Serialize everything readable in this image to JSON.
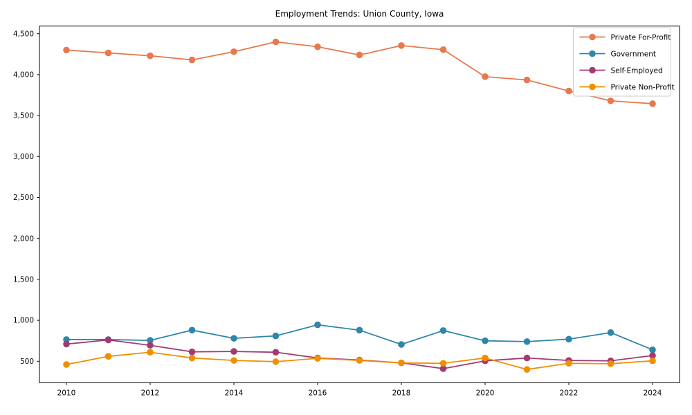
{
  "title": "Employment Trends: Union County, Iowa",
  "colors": {
    "private_for_profit": "#e8784e",
    "government": "#2e86ab",
    "self_employed": "#a23b72",
    "private_non_profit": "#f18f01",
    "spine": "#000000",
    "legend_border": "#cccccc",
    "background": "#ffffff"
  },
  "legend": {
    "position": "upper-right",
    "items": [
      {
        "label": "Private For-Profit",
        "color_key": "private_for_profit"
      },
      {
        "label": "Government",
        "color_key": "government"
      },
      {
        "label": "Self-Employed",
        "color_key": "self_employed"
      },
      {
        "label": "Private Non-Profit",
        "color_key": "private_non_profit"
      }
    ]
  },
  "axes": {
    "x_ticks": [
      {
        "value": 2010,
        "label": "2010"
      },
      {
        "value": 2012,
        "label": "2012"
      },
      {
        "value": 2014,
        "label": "2014"
      },
      {
        "value": 2016,
        "label": "2016"
      },
      {
        "value": 2018,
        "label": "2018"
      },
      {
        "value": 2020,
        "label": "2020"
      },
      {
        "value": 2022,
        "label": "2022"
      },
      {
        "value": 2024,
        "label": "2024"
      }
    ],
    "y_ticks": [
      {
        "value": 500,
        "label": "500"
      },
      {
        "value": 1000,
        "label": "1,000"
      },
      {
        "value": 1500,
        "label": "1,500"
      },
      {
        "value": 2000,
        "label": "2,000"
      },
      {
        "value": 2500,
        "label": "2,500"
      },
      {
        "value": 3000,
        "label": "3,000"
      },
      {
        "value": 3500,
        "label": "3,500"
      },
      {
        "value": 4000,
        "label": "4,000"
      },
      {
        "value": 4500,
        "label": "4,500"
      }
    ]
  },
  "chart_data": {
    "type": "line",
    "title": "Employment Trends: Union County, Iowa",
    "xlabel": "",
    "ylabel": "",
    "grid": false,
    "legend_position": "upper-right",
    "xlim": [
      2009.3,
      2024.7
    ],
    "ylim": [
      240,
      4590
    ],
    "x": [
      2010,
      2011,
      2012,
      2013,
      2014,
      2015,
      2016,
      2017,
      2018,
      2019,
      2020,
      2021,
      2022,
      2023,
      2024
    ],
    "series": [
      {
        "name": "Private For-Profit",
        "color_key": "private_for_profit",
        "values": [
          4300,
          4265,
          4230,
          4180,
          4280,
          4400,
          4340,
          4240,
          4355,
          4305,
          3975,
          3935,
          3800,
          3680,
          3645
        ]
      },
      {
        "name": "Government",
        "color_key": "government",
        "values": [
          765,
          765,
          755,
          880,
          780,
          810,
          945,
          880,
          705,
          875,
          750,
          740,
          770,
          850,
          640
        ]
      },
      {
        "name": "Self-Employed",
        "color_key": "self_employed",
        "values": [
          710,
          760,
          695,
          615,
          620,
          610,
          540,
          515,
          480,
          410,
          505,
          540,
          510,
          505,
          570
        ]
      },
      {
        "name": "Private Non-Profit",
        "color_key": "private_non_profit",
        "values": [
          460,
          560,
          610,
          540,
          510,
          495,
          535,
          510,
          480,
          475,
          540,
          400,
          475,
          470,
          505
        ]
      }
    ]
  }
}
